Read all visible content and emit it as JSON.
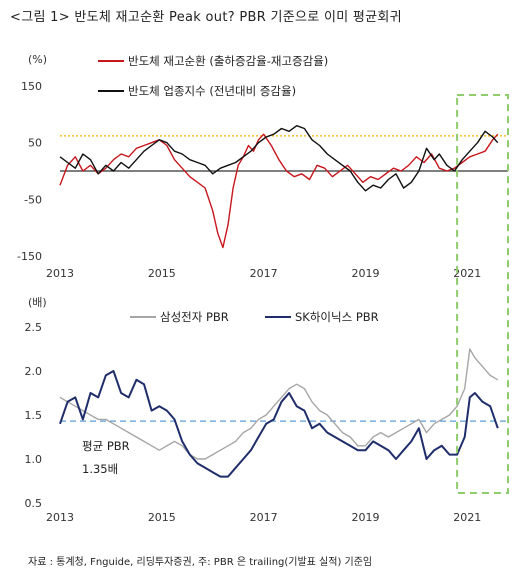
{
  "figure": {
    "title": "<그림 1> 반도체 재고순환 Peak out? PBR 기준으로 이미 평균회귀",
    "source": "자료 : 통계청, Fnguide, 리딩투자증권,        주: PBR 은 trailing(기발표 실적) 기준임"
  },
  "chart_data": [
    {
      "type": "line",
      "ylabel": "(%)",
      "ylim": [
        -150,
        150
      ],
      "yticks": [
        150,
        50,
        -50,
        -150
      ],
      "xlim": [
        2013,
        2021.8
      ],
      "xticks": [
        2013,
        2015,
        2017,
        2019,
        2021
      ],
      "reference_lines": [
        {
          "y": 0,
          "style": "solid",
          "color": "#333333"
        },
        {
          "y": 62,
          "style": "dotted",
          "color": "#f5b400"
        }
      ],
      "series": [
        {
          "name": "반도체 재고순환 (출하증감율-재고증감율)",
          "color": "#c8161d",
          "x": [
            2013.0,
            2013.15,
            2013.3,
            2013.45,
            2013.6,
            2013.75,
            2013.9,
            2014.05,
            2014.2,
            2014.35,
            2014.5,
            2014.65,
            2014.8,
            2014.95,
            2015.1,
            2015.25,
            2015.4,
            2015.55,
            2015.7,
            2015.85,
            2016.0,
            2016.1,
            2016.2,
            2016.3,
            2016.4,
            2016.5,
            2016.6,
            2016.7,
            2016.8,
            2016.9,
            2017.0,
            2017.15,
            2017.3,
            2017.45,
            2017.6,
            2017.75,
            2017.9,
            2018.05,
            2018.2,
            2018.35,
            2018.5,
            2018.65,
            2018.8,
            2018.95,
            2019.1,
            2019.25,
            2019.4,
            2019.55,
            2019.7,
            2019.85,
            2020.0,
            2020.15,
            2020.3,
            2020.45,
            2020.6,
            2020.75,
            2020.9,
            2021.05,
            2021.2,
            2021.35,
            2021.5,
            2021.6
          ],
          "values": [
            -25,
            10,
            25,
            0,
            10,
            -5,
            5,
            20,
            30,
            25,
            40,
            45,
            50,
            55,
            45,
            20,
            5,
            -10,
            -20,
            -30,
            -70,
            -110,
            -135,
            -95,
            -30,
            10,
            25,
            45,
            35,
            55,
            65,
            45,
            20,
            0,
            -10,
            -5,
            -15,
            10,
            5,
            -10,
            0,
            10,
            -5,
            -20,
            -10,
            -15,
            -5,
            5,
            0,
            10,
            25,
            15,
            30,
            5,
            0,
            5,
            15,
            25,
            30,
            35,
            55,
            65
          ]
        },
        {
          "name": "반도체 업종지수 (전년대비 증감율)",
          "color": "#111111",
          "x": [
            2013.0,
            2013.15,
            2013.3,
            2013.45,
            2013.6,
            2013.75,
            2013.9,
            2014.05,
            2014.2,
            2014.35,
            2014.5,
            2014.65,
            2014.8,
            2014.95,
            2015.1,
            2015.25,
            2015.4,
            2015.55,
            2015.7,
            2015.85,
            2016.0,
            2016.15,
            2016.3,
            2016.45,
            2016.6,
            2016.75,
            2016.9,
            2017.05,
            2017.2,
            2017.35,
            2017.5,
            2017.65,
            2017.8,
            2017.95,
            2018.1,
            2018.25,
            2018.4,
            2018.55,
            2018.7,
            2018.85,
            2019.0,
            2019.15,
            2019.3,
            2019.45,
            2019.6,
            2019.75,
            2019.9,
            2020.05,
            2020.2,
            2020.35,
            2020.45,
            2020.6,
            2020.75,
            2020.9,
            2021.05,
            2021.2,
            2021.35,
            2021.5,
            2021.6
          ],
          "values": [
            25,
            15,
            5,
            30,
            20,
            -5,
            10,
            0,
            15,
            5,
            20,
            35,
            45,
            55,
            50,
            35,
            30,
            20,
            15,
            10,
            -5,
            5,
            10,
            15,
            25,
            35,
            50,
            60,
            65,
            75,
            70,
            80,
            75,
            55,
            45,
            30,
            20,
            10,
            0,
            -20,
            -35,
            -25,
            -30,
            -15,
            -5,
            -30,
            -20,
            0,
            40,
            20,
            30,
            10,
            0,
            20,
            35,
            50,
            70,
            60,
            50
          ]
        }
      ]
    },
    {
      "type": "line",
      "ylabel": "(배)",
      "ylim": [
        0.5,
        2.5
      ],
      "yticks": [
        2.5,
        2.0,
        1.5,
        1.0,
        0.5
      ],
      "xlim": [
        2013,
        2021.8
      ],
      "xticks": [
        2013,
        2015,
        2017,
        2019,
        2021
      ],
      "reference_lines": [
        {
          "y": 1.43,
          "style": "dashed",
          "color": "#5b9bd5"
        }
      ],
      "annotation": {
        "text": "평균 PBR",
        "value": "1.35배"
      },
      "series": [
        {
          "name": "삼성전자 PBR",
          "color": "#a6a6a6",
          "x": [
            2013.0,
            2013.15,
            2013.3,
            2013.45,
            2013.6,
            2013.75,
            2013.9,
            2014.05,
            2014.2,
            2014.35,
            2014.5,
            2014.65,
            2014.8,
            2014.95,
            2015.1,
            2015.25,
            2015.4,
            2015.55,
            2015.7,
            2015.85,
            2016.0,
            2016.15,
            2016.3,
            2016.45,
            2016.6,
            2016.75,
            2016.9,
            2017.05,
            2017.2,
            2017.35,
            2017.5,
            2017.65,
            2017.8,
            2017.95,
            2018.1,
            2018.25,
            2018.4,
            2018.55,
            2018.7,
            2018.85,
            2019.0,
            2019.15,
            2019.3,
            2019.45,
            2019.6,
            2019.75,
            2019.9,
            2020.05,
            2020.2,
            2020.35,
            2020.5,
            2020.65,
            2020.8,
            2020.95,
            2021.05,
            2021.15,
            2021.3,
            2021.45,
            2021.6
          ],
          "values": [
            1.7,
            1.65,
            1.6,
            1.55,
            1.5,
            1.45,
            1.45,
            1.4,
            1.35,
            1.3,
            1.25,
            1.2,
            1.15,
            1.1,
            1.15,
            1.2,
            1.15,
            1.05,
            1.0,
            1.0,
            1.05,
            1.1,
            1.15,
            1.2,
            1.3,
            1.35,
            1.45,
            1.5,
            1.6,
            1.7,
            1.8,
            1.85,
            1.8,
            1.65,
            1.55,
            1.5,
            1.4,
            1.3,
            1.25,
            1.15,
            1.15,
            1.25,
            1.3,
            1.25,
            1.3,
            1.35,
            1.4,
            1.45,
            1.3,
            1.4,
            1.45,
            1.5,
            1.6,
            1.8,
            2.25,
            2.15,
            2.05,
            1.95,
            1.9
          ]
        },
        {
          "name": "SK하이닉스 PBR",
          "color": "#1f2d6b",
          "x": [
            2013.0,
            2013.15,
            2013.3,
            2013.45,
            2013.6,
            2013.75,
            2013.9,
            2014.05,
            2014.2,
            2014.35,
            2014.5,
            2014.65,
            2014.8,
            2014.95,
            2015.1,
            2015.25,
            2015.4,
            2015.55,
            2015.7,
            2015.85,
            2016.0,
            2016.15,
            2016.3,
            2016.45,
            2016.6,
            2016.75,
            2016.9,
            2017.05,
            2017.2,
            2017.35,
            2017.5,
            2017.65,
            2017.8,
            2017.95,
            2018.1,
            2018.25,
            2018.4,
            2018.55,
            2018.7,
            2018.85,
            2019.0,
            2019.15,
            2019.3,
            2019.45,
            2019.6,
            2019.75,
            2019.9,
            2020.05,
            2020.2,
            2020.35,
            2020.5,
            2020.65,
            2020.8,
            2020.95,
            2021.05,
            2021.15,
            2021.3,
            2021.45,
            2021.6
          ],
          "values": [
            1.4,
            1.65,
            1.7,
            1.45,
            1.75,
            1.7,
            1.95,
            2.0,
            1.75,
            1.7,
            1.9,
            1.85,
            1.55,
            1.6,
            1.55,
            1.45,
            1.2,
            1.05,
            0.95,
            0.9,
            0.85,
            0.8,
            0.8,
            0.9,
            1.0,
            1.1,
            1.25,
            1.4,
            1.45,
            1.65,
            1.75,
            1.6,
            1.55,
            1.35,
            1.4,
            1.3,
            1.25,
            1.2,
            1.15,
            1.1,
            1.1,
            1.2,
            1.15,
            1.1,
            1.0,
            1.1,
            1.2,
            1.35,
            1.0,
            1.1,
            1.15,
            1.05,
            1.05,
            1.25,
            1.7,
            1.75,
            1.65,
            1.6,
            1.35
          ]
        }
      ]
    }
  ],
  "highlight": {
    "color": "#8fcc6b",
    "x_from": 2020.8,
    "x_to": 2021.8
  }
}
